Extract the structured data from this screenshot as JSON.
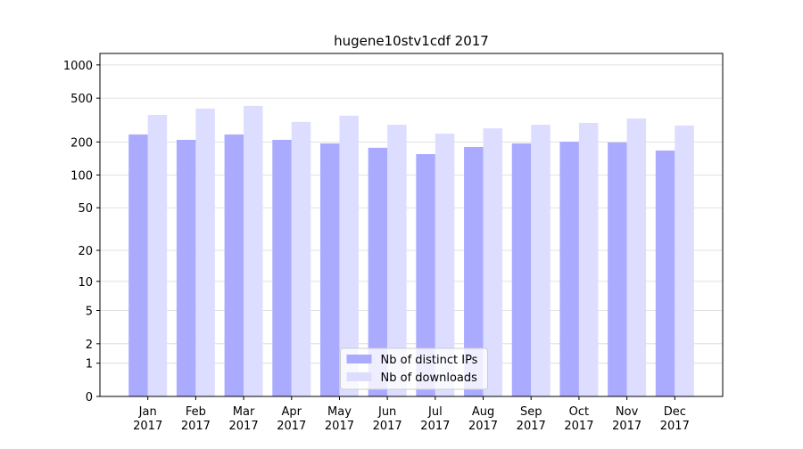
{
  "chart_data": {
    "type": "bar",
    "title": "hugene10stv1cdf 2017",
    "categories": [
      "Jan\n2017",
      "Feb\n2017",
      "Mar\n2017",
      "Apr\n2017",
      "May\n2017",
      "Jun\n2017",
      "Jul\n2017",
      "Aug\n2017",
      "Sep\n2017",
      "Oct\n2017",
      "Nov\n2017",
      "Dec\n2017"
    ],
    "series": [
      {
        "name": "Nb of distinct IPs",
        "color": "#aaaaff",
        "values": [
          234,
          209,
          234,
          209,
          194,
          177,
          155,
          180,
          194,
          201,
          198,
          167
        ]
      },
      {
        "name": "Nb of downloads",
        "color": "#ddddff",
        "values": [
          352,
          402,
          425,
          304,
          346,
          287,
          238,
          266,
          287,
          298,
          327,
          282
        ]
      }
    ],
    "yscale": "log1p",
    "ylim": [
      0,
      1270
    ],
    "yticks": [
      0,
      1,
      2,
      5,
      10,
      20,
      50,
      100,
      200,
      500,
      1000
    ],
    "grid": true,
    "legend": "lower center"
  }
}
